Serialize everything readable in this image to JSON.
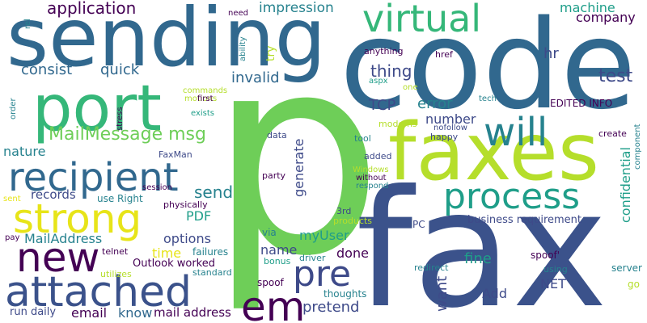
{
  "words": [
    "p",
    "code",
    "fax",
    "sending",
    "faxes",
    "port",
    "recipient",
    "virtual",
    "process",
    "attached",
    "strong",
    "new",
    "em",
    "pre",
    "will",
    "MailMessage msg",
    "application",
    "impression",
    "machine",
    "company",
    "test",
    "hr",
    "thing",
    "TCP",
    "error",
    "number",
    "invalid",
    "consist",
    "quick",
    "EDITED INFO",
    "confidential",
    "generate",
    "send",
    "records",
    "nature",
    "use Right",
    "PDF",
    "time",
    "MailAddress",
    "options",
    "Outlook worked",
    "name",
    "myUser",
    "done",
    "pretend",
    "fine",
    "want",
    "NET",
    "Add",
    "business requirement",
    "spoof'",
    "email",
    "know",
    "mail address",
    "run daily",
    "thoughts",
    "spoof",
    "driver",
    "bonus",
    "via",
    "party",
    "3rd",
    "products",
    "PC",
    "redirect",
    "server",
    "using",
    "go",
    "component",
    "create",
    "happy",
    "nofollow",
    "modems",
    "tool",
    "added",
    "without",
    "respond",
    "Windows",
    "data",
    "FaxMan",
    "session",
    "physically",
    "failures",
    "standard",
    "utilizes",
    "telnet",
    "pay",
    "sent",
    "stress",
    "order",
    "commands",
    "motions",
    "exists",
    "first",
    "ability",
    "rel",
    "need",
    "try",
    "anything",
    "aspx",
    "href",
    "one",
    "tech"
  ],
  "colors": {
    "dark_purple": "#440154",
    "indigo": "#3b528b",
    "blue": "#31688e",
    "teal": "#26828e",
    "green_teal": "#1f9e89",
    "green": "#35b779",
    "light_green": "#6ece58",
    "lime": "#b5de2b",
    "yellow": "#e7e419",
    "navy": "#3e4a89"
  }
}
